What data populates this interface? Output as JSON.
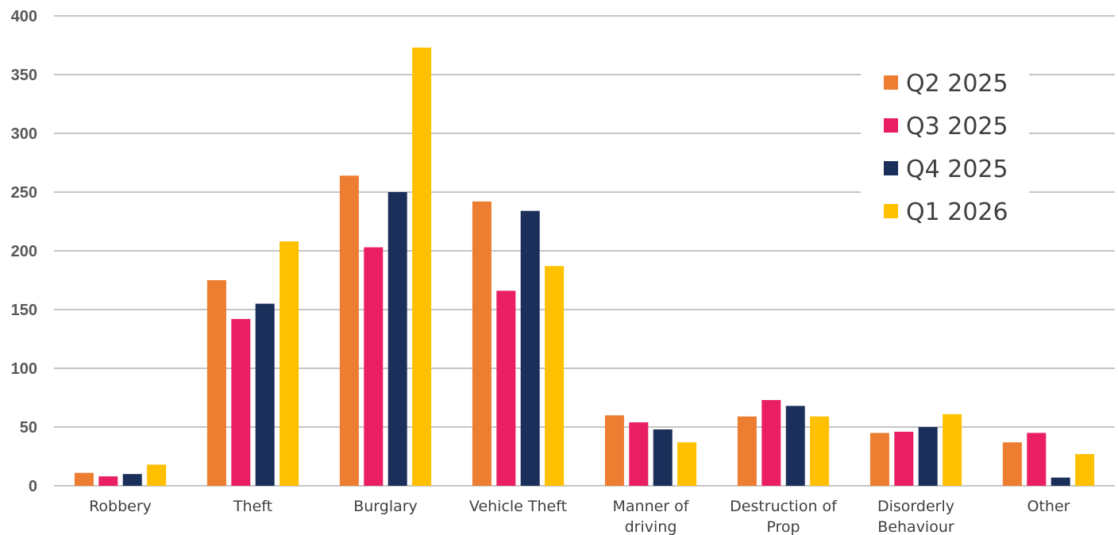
{
  "chart_data": {
    "type": "bar",
    "categories": [
      [
        "Robbery"
      ],
      [
        "Theft"
      ],
      [
        "Burglary"
      ],
      [
        "Vehicle Theft"
      ],
      [
        "Manner of",
        "driving"
      ],
      [
        "Destruction of",
        "Prop"
      ],
      [
        "Disorderly",
        "Behaviour"
      ],
      [
        "Other"
      ]
    ],
    "series": [
      {
        "name": "Q2 2025",
        "color": "#ED7D31",
        "values": [
          11,
          175,
          264,
          242,
          60,
          59,
          45,
          37
        ]
      },
      {
        "name": "Q3 2025",
        "color": "#E91E63",
        "values": [
          8,
          142,
          203,
          166,
          54,
          73,
          46,
          45
        ]
      },
      {
        "name": "Q4 2025",
        "color": "#1B2F5B",
        "values": [
          10,
          155,
          250,
          234,
          48,
          68,
          50,
          7
        ]
      },
      {
        "name": "Q1 2026",
        "color": "#FFC000",
        "values": [
          18,
          208,
          373,
          187,
          37,
          59,
          61,
          27
        ]
      }
    ],
    "ylim": [
      0,
      400
    ],
    "yticks": [
      "0",
      "50",
      "100",
      "150",
      "200",
      "250",
      "300",
      "350",
      "400"
    ],
    "grid": true,
    "legend_position": "top-right"
  }
}
